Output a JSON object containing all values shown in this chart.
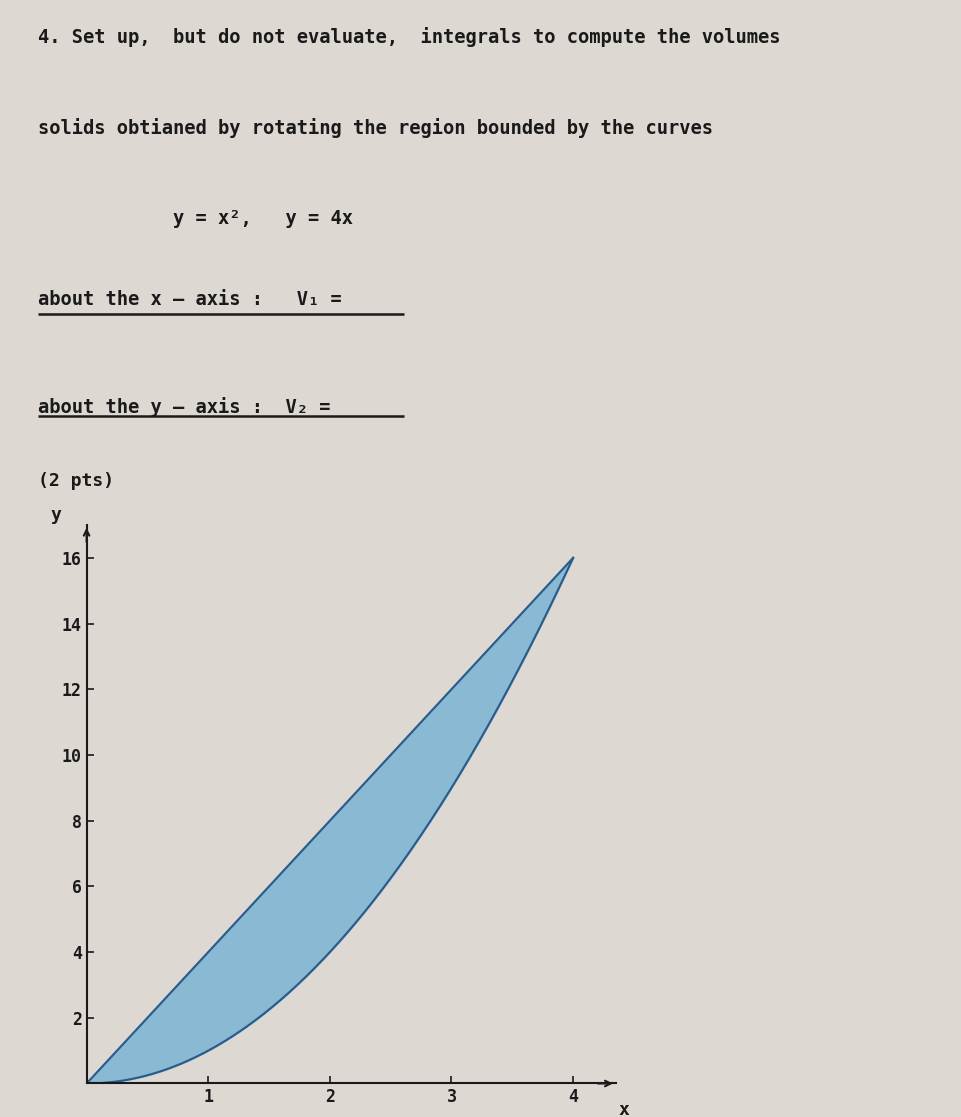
{
  "title_line1": "4. Set up,  but do not evaluate,  integrals to compute the volumes",
  "title_line2": "solids obtianed by rotating the region bounded by the curves",
  "equation_line": "y = x²,   y = 4x",
  "label_xaxis": "about the x – axis :   V₁ =",
  "label_yaxis": "about the y – axis :  V₂ =",
  "points_label": "(2 pts)",
  "background_color": "#ddd8d2",
  "text_color": "#1a1a1a",
  "fill_color": "#6fafd4",
  "fill_alpha": 0.75,
  "x_min": 0,
  "x_max": 4,
  "y_min": 0,
  "y_max": 17,
  "yticks": [
    2,
    4,
    6,
    8,
    10,
    12,
    14,
    16
  ],
  "xticks": [
    1,
    2,
    3,
    4
  ],
  "xlabel": "x",
  "ylabel": "y",
  "font_family": "monospace"
}
